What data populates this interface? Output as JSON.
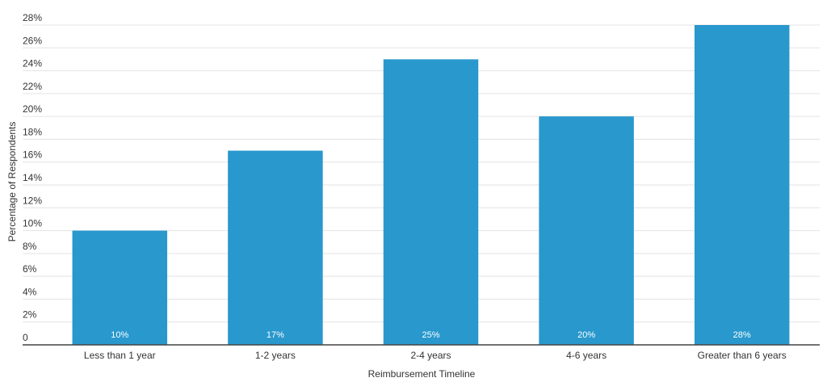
{
  "chart_data": {
    "type": "bar",
    "x_label": "Reimbursement Timeline",
    "y_label": "Percentage of Respondents",
    "categories": [
      "Less than 1 year",
      "1-2 years",
      "2-4 years",
      "4-6 years",
      "Greater than 6 years"
    ],
    "values": [
      10,
      17,
      25,
      20,
      28
    ],
    "value_labels": [
      "10%",
      "17%",
      "25%",
      "20%",
      "28%"
    ],
    "color": "#2898cd",
    "ylim": [
      0,
      28
    ],
    "yticks": [
      0,
      {
        "value": 2,
        "label": "2%"
      },
      {
        "value": 4,
        "label": "4%"
      },
      {
        "value": 6,
        "label": "6%"
      },
      {
        "value": 8,
        "label": "8%"
      },
      {
        "value": 10,
        "label": "10%"
      },
      {
        "value": 12,
        "label": "12%"
      },
      {
        "value": 14,
        "label": "14%"
      },
      {
        "value": 16,
        "label": "16%"
      },
      {
        "value": 18,
        "label": "18%"
      },
      {
        "value": 20,
        "label": "20%"
      },
      {
        "value": 22,
        "label": "22%"
      },
      {
        "value": 24,
        "label": "24%"
      },
      {
        "value": 26,
        "label": "26%"
      },
      {
        "value": 28,
        "label": "28%"
      }
    ],
    "grid": true
  }
}
